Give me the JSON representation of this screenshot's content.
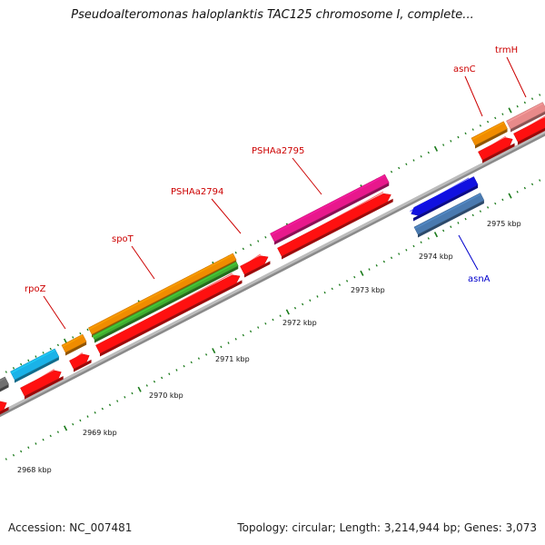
{
  "title": "Pseudoalteromonas haloplanktis TAC125 chromosome I, complete...",
  "footer": {
    "accession": "Accession: NC_007481",
    "summary": "Topology: circular; Length: 3,214,944 bp; Genes: 3,073"
  },
  "colors": {
    "backbone": "#8a8a8a",
    "tick": "#1a7a1a",
    "label_forward": "#cc0000",
    "label_reverse": "#0000cc"
  },
  "ruler": {
    "unit": "kbp",
    "labels": [
      "2968 kbp",
      "2969 kbp",
      "2970 kbp",
      "2971 kbp",
      "2972 kbp",
      "2973 kbp",
      "2974 kbp",
      "2975 kbp"
    ]
  },
  "gene_labels": [
    {
      "name": "rpoZ",
      "strand": "forward"
    },
    {
      "name": "spoT",
      "strand": "forward"
    },
    {
      "name": "PSHAa2794",
      "strand": "forward"
    },
    {
      "name": "PSHAa2795",
      "strand": "forward"
    },
    {
      "name": "asnC",
      "strand": "forward"
    },
    {
      "name": "trmH",
      "strand": "forward"
    },
    {
      "name": "asnA",
      "strand": "reverse"
    }
  ],
  "features": [
    {
      "name": "gray-gene",
      "color": "#707070"
    },
    {
      "name": "cyan-gene",
      "color": "#1ab2e8"
    },
    {
      "name": "rpoZ",
      "color": "#f08c00"
    },
    {
      "name": "spoT",
      "color": "#f08c00"
    },
    {
      "name": "spoT-green",
      "color": "#40b030"
    },
    {
      "name": "PSHAa2795",
      "color": "#e8188c"
    },
    {
      "name": "asnC",
      "color": "#f08c00"
    },
    {
      "name": "trmH",
      "color": "#e88a8a"
    },
    {
      "name": "asnA-blue",
      "color": "#1010e0"
    },
    {
      "name": "asnA-steel",
      "color": "#4a7ab0"
    },
    {
      "name": "cds",
      "color": "#ff1010"
    }
  ]
}
